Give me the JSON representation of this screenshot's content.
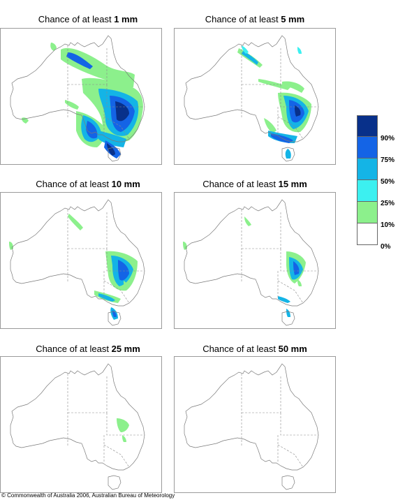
{
  "title_prefix": "Chance of at least",
  "panels": [
    {
      "amount": "1 mm"
    },
    {
      "amount": "5 mm"
    },
    {
      "amount": "10 mm"
    },
    {
      "amount": "15 mm"
    },
    {
      "amount": "25 mm"
    },
    {
      "amount": "50 mm"
    }
  ],
  "legend": {
    "colors": [
      "#08308a",
      "#1464e6",
      "#14b4e6",
      "#3cf0f0",
      "#8cf08c",
      "#ffffff"
    ],
    "labels": [
      "90%",
      "75%",
      "50%",
      "25%",
      "10%",
      "0%"
    ]
  },
  "colors": {
    "coast": "#7a7a7a",
    "border": "#8a8a8a",
    "frame": "#9a9a9a"
  },
  "copyright": "© Commonwealth of Australia 2006, Australian Bureau of Meteorology"
}
